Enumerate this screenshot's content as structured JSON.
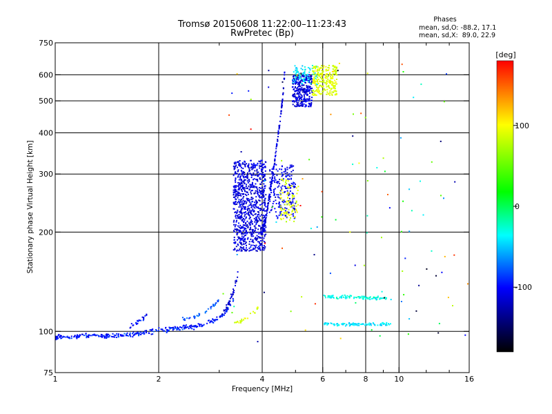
{
  "chart_data": {
    "type": "scatter",
    "title": "Tromsø 20150608 11:22:00–11:23:43",
    "subtitle": "RwPretec (Bp)",
    "stats": {
      "heading": "Phases",
      "line_o": "mean, sd,O: -88.2, 17.1",
      "line_x": "mean, sd,X:  89.0, 22.9"
    },
    "xlabel": "Frequency [MHz]",
    "ylabel": "Stationary phase Virtual Height [km]",
    "x_scale": "log",
    "y_scale": "log",
    "xlim": [
      1,
      16
    ],
    "ylim": [
      75,
      750
    ],
    "grid": true,
    "x_ticks": [
      1,
      2,
      4,
      6,
      8,
      10,
      16
    ],
    "x_tick_labels": [
      "1",
      "2",
      "4",
      "6",
      "8",
      "10",
      "16"
    ],
    "x_gridlines": [
      2,
      4,
      6,
      8,
      10
    ],
    "x_minor_ticks": [
      3,
      5,
      7,
      9,
      12,
      14
    ],
    "y_ticks": [
      75,
      100,
      200,
      300,
      400,
      500,
      600,
      750
    ],
    "y_tick_labels": [
      "75",
      "100",
      "200",
      "300",
      "400",
      "500",
      "600",
      "750"
    ],
    "y_gridlines": [
      100,
      200,
      300,
      400,
      500,
      600
    ],
    "colorbar": {
      "label": "[deg]",
      "min": -180,
      "max": 180,
      "ticks": [
        100,
        0,
        -100
      ],
      "tick_labels": [
        "100",
        "0",
        "-100"
      ],
      "stops": [
        "#ff0000",
        "#ffff00",
        "#00ff00",
        "#00ffff",
        "#0000ff",
        "#000000"
      ]
    },
    "series": [
      {
        "kind": "curve",
        "x": [
          1.0,
          1.1,
          1.2,
          1.3,
          1.4,
          1.5,
          1.6,
          1.7,
          1.8,
          1.9,
          2.0,
          2.1,
          2.2,
          2.3,
          2.4,
          2.5,
          2.6,
          2.7,
          2.8,
          2.9,
          3.0,
          3.1,
          3.2,
          3.3
        ],
        "y": [
          96,
          96,
          97,
          97,
          97,
          97,
          98,
          98,
          99,
          100,
          101,
          101,
          102,
          102,
          103,
          103,
          104,
          105,
          107,
          108,
          110,
          113,
          118,
          126
        ],
        "phase": -95,
        "jitter": 0.012,
        "count": 320
      },
      {
        "kind": "curve",
        "x": [
          1.65,
          1.7,
          1.75,
          1.8,
          1.85
        ],
        "y": [
          103,
          105,
          107,
          109,
          112
        ],
        "phase": -100,
        "jitter": 0.012,
        "count": 25
      },
      {
        "kind": "curve",
        "x": [
          2.3,
          2.5,
          2.7,
          2.8,
          2.9,
          3.0
        ],
        "y": [
          108,
          110,
          113,
          116,
          120,
          125
        ],
        "phase": -80,
        "jitter": 0.01,
        "count": 35
      },
      {
        "kind": "curve",
        "x": [
          3.0,
          3.1,
          3.2,
          3.3,
          3.4
        ],
        "y": [
          110,
          115,
          122,
          132,
          150
        ],
        "phase": -115,
        "jitter": 0.015,
        "count": 40
      },
      {
        "kind": "curve",
        "x": [
          3.3,
          3.5,
          3.7,
          3.9
        ],
        "y": [
          105,
          108,
          112,
          118
        ],
        "phase": 90,
        "jitter": 0.01,
        "count": 25
      },
      {
        "kind": "cloud",
        "x": [
          3.3,
          4.1
        ],
        "y": [
          175,
          330
        ],
        "phase": -110,
        "count": 900
      },
      {
        "kind": "curve",
        "x": [
          4.0,
          4.1,
          4.2,
          4.3,
          4.4,
          4.5,
          4.6,
          4.65
        ],
        "y": [
          200,
          220,
          260,
          300,
          360,
          430,
          520,
          610
        ],
        "phase": -110,
        "jitter": 0.015,
        "count": 160
      },
      {
        "kind": "cloud",
        "x": [
          4.2,
          5.0
        ],
        "y": [
          220,
          320
        ],
        "phase": -105,
        "count": 200
      },
      {
        "kind": "cloud",
        "x": [
          4.5,
          5.1
        ],
        "y": [
          215,
          290
        ],
        "phase": 90,
        "count": 90
      },
      {
        "kind": "cloud",
        "x": [
          4.9,
          5.6
        ],
        "y": [
          480,
          600
        ],
        "phase": -110,
        "count": 300
      },
      {
        "kind": "cloud",
        "x": [
          4.9,
          5.8
        ],
        "y": [
          560,
          640
        ],
        "phase": -40,
        "count": 80
      },
      {
        "kind": "cloud",
        "x": [
          5.6,
          6.6
        ],
        "y": [
          520,
          640
        ],
        "phase": 90,
        "count": 250
      },
      {
        "kind": "curve",
        "x": [
          6.0,
          6.5,
          7.0,
          7.5,
          8.0,
          8.5,
          9.0,
          9.5
        ],
        "y": [
          128,
          127,
          127,
          127,
          126,
          126,
          126,
          125
        ],
        "phase": -30,
        "jitter": 0.008,
        "count": 100
      },
      {
        "kind": "curve",
        "x": [
          6.0,
          6.5,
          7.0,
          7.5,
          8.0,
          8.5,
          9.0,
          9.5
        ],
        "y": [
          106,
          105,
          105,
          105,
          105,
          105,
          105,
          105
        ],
        "phase": -40,
        "jitter": 0.008,
        "count": 90
      },
      {
        "kind": "random",
        "x": [
          3.0,
          16.0
        ],
        "y": [
          90,
          650
        ],
        "phase": 0,
        "count": 110
      }
    ]
  }
}
